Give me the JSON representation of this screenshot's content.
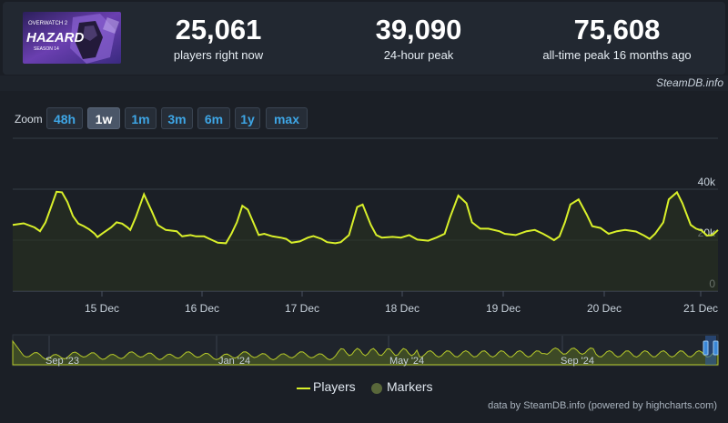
{
  "header": {
    "game_art": {
      "line1": "OVERWATCH 2",
      "line2": "HAZARD",
      "line3": "SEASON 14"
    },
    "stats": [
      {
        "value": "25,061",
        "label": "players right now"
      },
      {
        "value": "39,090",
        "label": "24-hour peak"
      },
      {
        "value": "75,608",
        "label": "all-time peak 16 months ago"
      }
    ],
    "credit": "SteamDB.info"
  },
  "zoom": {
    "label": "Zoom",
    "options": [
      "48h",
      "1w",
      "1m",
      "3m",
      "6m",
      "1y",
      "max"
    ],
    "selected": "1w"
  },
  "legend": {
    "players": "Players",
    "markers": "Markers"
  },
  "footer": {
    "credit": "data by SteamDB.info (powered by highcharts.com)"
  },
  "colors": {
    "line": "#d9f02a",
    "marker": "#59673a",
    "background": "#1b1f26",
    "accent": "#3ea6e6"
  },
  "chart_data": {
    "type": "line",
    "title": "",
    "x_ticks": [
      "15 Dec",
      "16 Dec",
      "17 Dec",
      "18 Dec",
      "19 Dec",
      "20 Dec",
      "21 Dec"
    ],
    "y_ticks": [
      "0",
      "20k",
      "40k"
    ],
    "ylim": [
      0,
      40000
    ],
    "grid": true,
    "series": [
      {
        "name": "Players",
        "points": [
          [
            0.0,
            26000
          ],
          [
            0.2,
            26600
          ],
          [
            0.4,
            25000
          ],
          [
            0.5,
            23500
          ],
          [
            0.6,
            27000
          ],
          [
            0.7,
            33000
          ],
          [
            0.8,
            39000
          ],
          [
            0.9,
            38800
          ],
          [
            1.0,
            35000
          ],
          [
            1.1,
            29500
          ],
          [
            1.2,
            26500
          ],
          [
            1.3,
            25500
          ],
          [
            1.4,
            24200
          ],
          [
            1.5,
            22500
          ],
          [
            1.55,
            21200
          ],
          [
            1.65,
            22800
          ],
          [
            1.8,
            25000
          ],
          [
            1.9,
            27000
          ],
          [
            2.0,
            26500
          ],
          [
            2.1,
            25000
          ],
          [
            2.15,
            24000
          ],
          [
            2.25,
            29000
          ],
          [
            2.4,
            38000
          ],
          [
            2.55,
            31000
          ],
          [
            2.65,
            26000
          ],
          [
            2.8,
            24000
          ],
          [
            3.0,
            23500
          ],
          [
            3.1,
            21500
          ],
          [
            3.25,
            22000
          ],
          [
            3.35,
            21500
          ],
          [
            3.5,
            21500
          ],
          [
            3.6,
            20500
          ],
          [
            3.75,
            19000
          ],
          [
            3.9,
            18800
          ],
          [
            4.0,
            22500
          ],
          [
            4.1,
            27000
          ],
          [
            4.2,
            33500
          ],
          [
            4.3,
            32000
          ],
          [
            4.4,
            27000
          ],
          [
            4.5,
            22000
          ],
          [
            4.6,
            22500
          ],
          [
            4.75,
            21500
          ],
          [
            4.9,
            21000
          ],
          [
            5.0,
            20500
          ],
          [
            5.1,
            19000
          ],
          [
            5.25,
            19500
          ],
          [
            5.4,
            21000
          ],
          [
            5.5,
            21600
          ],
          [
            5.65,
            20500
          ],
          [
            5.75,
            19200
          ],
          [
            5.9,
            18800
          ],
          [
            6.0,
            19200
          ],
          [
            6.15,
            22000
          ],
          [
            6.3,
            33000
          ],
          [
            6.4,
            34000
          ],
          [
            6.55,
            26000
          ],
          [
            6.65,
            22000
          ],
          [
            6.75,
            21000
          ],
          [
            6.95,
            21300
          ],
          [
            7.1,
            21000
          ],
          [
            7.25,
            22000
          ],
          [
            7.4,
            20200
          ],
          [
            7.6,
            19800
          ],
          [
            7.75,
            21000
          ],
          [
            7.9,
            22500
          ],
          [
            8.0,
            29000
          ],
          [
            8.15,
            37500
          ],
          [
            8.3,
            34500
          ],
          [
            8.4,
            27000
          ],
          [
            8.55,
            24500
          ],
          [
            8.7,
            24500
          ],
          [
            8.9,
            23500
          ],
          [
            9.0,
            22500
          ],
          [
            9.2,
            22000
          ],
          [
            9.4,
            23500
          ],
          [
            9.55,
            24000
          ],
          [
            9.7,
            22500
          ],
          [
            9.8,
            21300
          ],
          [
            9.9,
            20000
          ],
          [
            10.0,
            21500
          ],
          [
            10.1,
            27000
          ],
          [
            10.2,
            34000
          ],
          [
            10.35,
            36000
          ],
          [
            10.5,
            30000
          ],
          [
            10.6,
            25500
          ],
          [
            10.75,
            24800
          ],
          [
            10.9,
            22500
          ],
          [
            11.05,
            23500
          ],
          [
            11.2,
            24000
          ],
          [
            11.4,
            23400
          ],
          [
            11.55,
            21800
          ],
          [
            11.65,
            20500
          ],
          [
            11.75,
            22500
          ],
          [
            11.9,
            27000
          ],
          [
            12.0,
            36000
          ],
          [
            12.15,
            38800
          ],
          [
            12.25,
            34500
          ],
          [
            12.4,
            26000
          ],
          [
            12.5,
            24500
          ],
          [
            12.6,
            23800
          ],
          [
            12.7,
            21800
          ],
          [
            12.8,
            22000
          ],
          [
            12.9,
            24000
          ]
        ]
      }
    ],
    "navigator": {
      "x_ticks": [
        "Sep '23",
        "Jan '24",
        "May '24",
        "Sep '24"
      ]
    }
  }
}
